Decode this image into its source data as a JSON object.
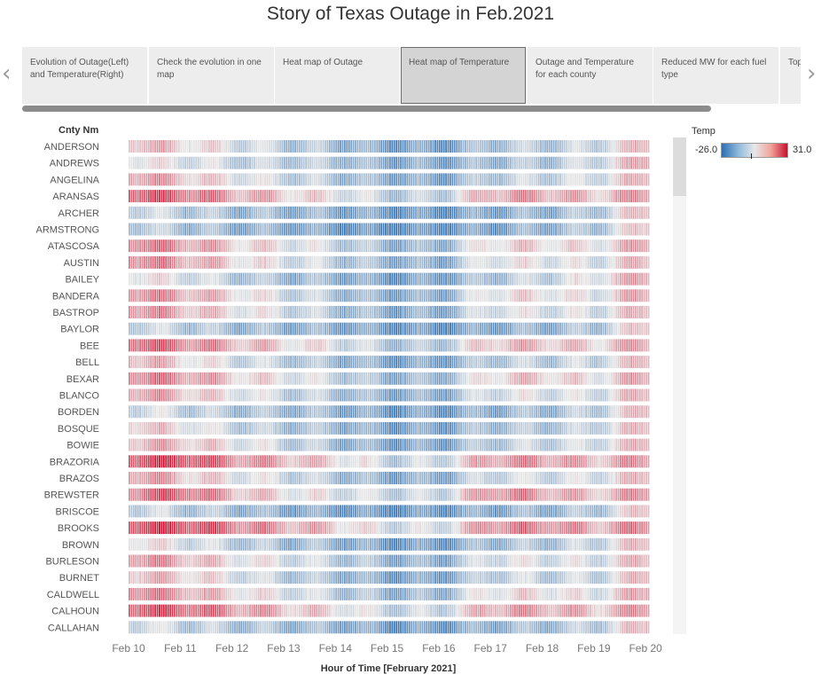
{
  "title": "Story of Texas Outage in Feb.2021",
  "nav": {
    "prev_icon": "‹",
    "next_icon": "›"
  },
  "tabs": [
    {
      "label": "Evolution of Outage(Left) and Temperature(Right)",
      "active": false
    },
    {
      "label": "Check the evolution in one map",
      "active": false
    },
    {
      "label": "Heat map of Outage",
      "active": false
    },
    {
      "label": "Heat map of Temperature",
      "active": true
    },
    {
      "label": "Outage and Temperature for each county",
      "active": false
    },
    {
      "label": "Reduced MW for each fuel type",
      "active": false
    },
    {
      "label": "Top",
      "active": false
    }
  ],
  "legend": {
    "title": "Temp",
    "min_label": "-26.0",
    "max_label": "31.0",
    "colors": [
      "#2c6fb0",
      "#8db8da",
      "#e8e8e8",
      "#f3a39a",
      "#c8102e"
    ]
  },
  "colors": {
    "cold": "#3a75b0",
    "mid": "#e6e6e6",
    "hot": "#c8102e"
  },
  "chart_data": {
    "type": "heatmap",
    "title": "Story of Texas Outage in Feb.2021",
    "ylabel": "Cnty Nm",
    "xlabel": "Hour of Time [February 2021]",
    "x_ticks": [
      "Feb 10",
      "Feb 11",
      "Feb 12",
      "Feb 13",
      "Feb 14",
      "Feb 15",
      "Feb 16",
      "Feb 17",
      "Feb 18",
      "Feb 19",
      "Feb 20"
    ],
    "value_range": [
      -26.0,
      31.0
    ],
    "value_label": "Temp",
    "counties": [
      "ANDERSON",
      "ANDREWS",
      "ANGELINA",
      "ARANSAS",
      "ARCHER",
      "ARMSTRONG",
      "ATASCOSA",
      "AUSTIN",
      "BAILEY",
      "BANDERA",
      "BASTROP",
      "BAYLOR",
      "BEE",
      "BELL",
      "BEXAR",
      "BLANCO",
      "BORDEN",
      "BOSQUE",
      "BOWIE",
      "BRAZORIA",
      "BRAZOS",
      "BREWSTER",
      "BRISCOE",
      "BROOKS",
      "BROWN",
      "BURLESON",
      "BURNET",
      "CALDWELL",
      "CALHOUN",
      "CALLAHAN"
    ],
    "day_profiles": {
      "ANDERSON": [
        10,
        5,
        -2,
        -8,
        -12,
        -18,
        -20,
        -10,
        -8,
        -6,
        10
      ],
      "ANDREWS": [
        3,
        -2,
        -6,
        -8,
        -10,
        -16,
        -18,
        -12,
        -10,
        -5,
        12
      ],
      "ANGELINA": [
        14,
        8,
        0,
        -5,
        -10,
        -15,
        -18,
        -8,
        -6,
        -4,
        10
      ],
      "ARANSAS": [
        24,
        20,
        12,
        6,
        0,
        -8,
        -8,
        12,
        12,
        6,
        14
      ],
      "ARCHER": [
        -4,
        -8,
        -12,
        -14,
        -16,
        -20,
        -22,
        -16,
        -14,
        -10,
        10
      ],
      "ARMSTRONG": [
        -6,
        -10,
        -14,
        -16,
        -20,
        -24,
        -22,
        -18,
        -14,
        -10,
        8
      ],
      "ATASCOSA": [
        18,
        14,
        6,
        0,
        -6,
        -14,
        -14,
        4,
        4,
        0,
        12
      ],
      "AUSTIN": [
        18,
        12,
        4,
        -2,
        -8,
        -14,
        -16,
        0,
        0,
        -4,
        10
      ],
      "BAILEY": [
        4,
        -2,
        -8,
        -12,
        -14,
        -20,
        -18,
        -10,
        -6,
        0,
        12
      ],
      "BANDERA": [
        16,
        12,
        4,
        -4,
        -10,
        -16,
        -16,
        2,
        2,
        -2,
        12
      ],
      "BASTROP": [
        16,
        10,
        2,
        -4,
        -10,
        -16,
        -16,
        -2,
        -2,
        -4,
        10
      ],
      "BAYLOR": [
        -4,
        -8,
        -12,
        -14,
        -16,
        -20,
        -22,
        -16,
        -14,
        -10,
        8
      ],
      "BEE": [
        22,
        18,
        10,
        4,
        -2,
        -10,
        -10,
        8,
        8,
        4,
        12
      ],
      "BELL": [
        12,
        4,
        -4,
        -8,
        -12,
        -18,
        -18,
        -8,
        -8,
        -6,
        10
      ],
      "BEXAR": [
        18,
        14,
        6,
        0,
        -6,
        -14,
        -14,
        4,
        6,
        0,
        12
      ],
      "BLANCO": [
        14,
        8,
        0,
        -6,
        -10,
        -16,
        -16,
        -2,
        -2,
        -4,
        10
      ],
      "BORDEN": [
        -2,
        -6,
        -10,
        -12,
        -14,
        -20,
        -20,
        -14,
        -12,
        -8,
        10
      ],
      "BOSQUE": [
        8,
        2,
        -6,
        -10,
        -12,
        -18,
        -18,
        -10,
        -10,
        -6,
        10
      ],
      "BOWIE": [
        10,
        8,
        0,
        -6,
        -12,
        -18,
        -18,
        -8,
        -6,
        -4,
        10
      ],
      "BRAZORIA": [
        24,
        26,
        16,
        10,
        4,
        -6,
        -6,
        14,
        14,
        8,
        14
      ],
      "BRAZOS": [
        14,
        8,
        0,
        -4,
        -10,
        -16,
        -16,
        -4,
        -4,
        -4,
        10
      ],
      "BREWSTER": [
        18,
        22,
        10,
        2,
        -2,
        -6,
        -6,
        16,
        12,
        6,
        14
      ],
      "BRISCOE": [
        -4,
        -8,
        -12,
        -16,
        -18,
        -22,
        -20,
        -16,
        -14,
        -10,
        8
      ],
      "BROOKS": [
        26,
        26,
        18,
        12,
        6,
        -4,
        -4,
        16,
        16,
        10,
        16
      ],
      "BROWN": [
        4,
        -2,
        -8,
        -12,
        -14,
        -20,
        -20,
        -12,
        -10,
        -6,
        10
      ],
      "BURLESON": [
        16,
        10,
        2,
        -2,
        -8,
        -14,
        -16,
        -2,
        -2,
        -4,
        10
      ],
      "BURNET": [
        10,
        6,
        -2,
        -8,
        -12,
        -18,
        -18,
        -6,
        -6,
        -6,
        10
      ],
      "CALDWELL": [
        18,
        12,
        4,
        -2,
        -8,
        -14,
        -14,
        2,
        2,
        -2,
        12
      ],
      "CALHOUN": [
        24,
        22,
        14,
        8,
        2,
        -6,
        -6,
        12,
        12,
        6,
        14
      ],
      "CALLAHAN": [
        -2,
        -6,
        -10,
        -12,
        -14,
        -20,
        -20,
        -14,
        -12,
        -8,
        10
      ]
    }
  }
}
